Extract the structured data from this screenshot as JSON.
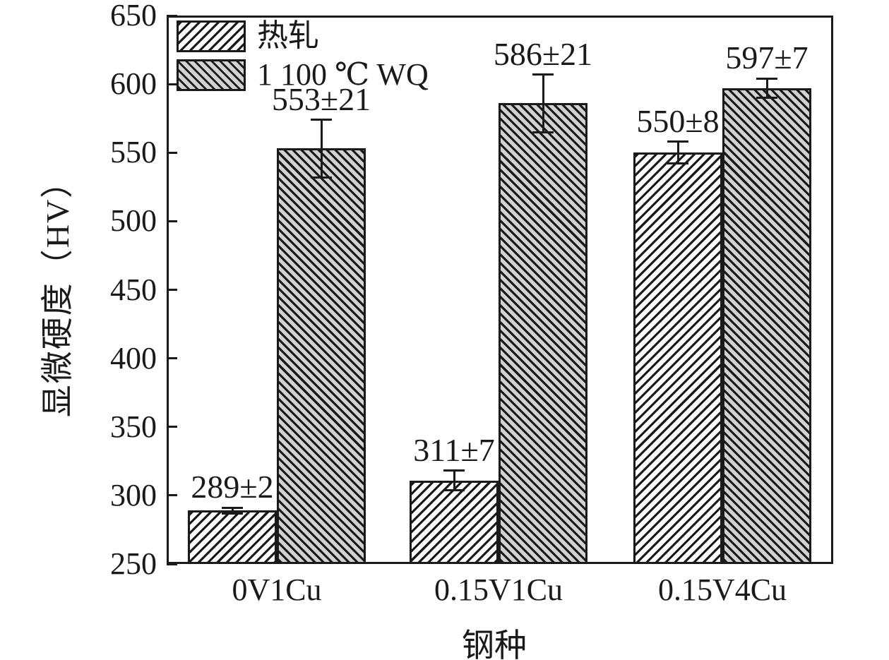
{
  "chart_data": {
    "type": "bar",
    "title": "",
    "xlabel": "钢种",
    "ylabel": "显微硬度（HV）",
    "ylim": [
      250,
      650
    ],
    "yticks": [
      250,
      300,
      350,
      400,
      450,
      500,
      550,
      600,
      650
    ],
    "grid": false,
    "legend_position": "top-left-inside",
    "categories": [
      "0V1Cu",
      "0.15V1Cu",
      "0.15V4Cu"
    ],
    "series": [
      {
        "key": "hot-rolled",
        "name": "热轧",
        "values": [
          289,
          311,
          550
        ],
        "errors": [
          2,
          7,
          8
        ],
        "labels": [
          "289±2",
          "311±7",
          "550±8"
        ],
        "hatch": "forward-diagonal",
        "fill": "#ffffff"
      },
      {
        "key": "wq-1100c",
        "name": "1 100 ℃ WQ",
        "values": [
          553,
          586,
          597
        ],
        "errors": [
          21,
          21,
          7
        ],
        "labels": [
          "553±21",
          "586±21",
          "597±7"
        ],
        "hatch": "backward-diagonal",
        "fill": "#d2d2d2"
      }
    ],
    "colors": {
      "axis": "#1a1a1a",
      "text": "#1a1a1a",
      "hatch_line": "#1a1a1a",
      "wq_fill": "#d2d2d2",
      "hot_fill": "#ffffff"
    }
  }
}
